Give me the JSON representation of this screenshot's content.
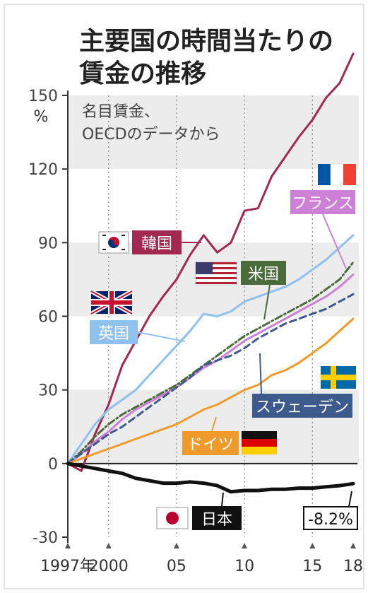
{
  "chart_data": {
    "type": "line",
    "title_line1": "主要国の時間当たりの",
    "title_line2": "賃金の推移",
    "subtitle_line1": "名目賃金、",
    "subtitle_line2": "OECDのデータから",
    "ylabel": "%",
    "ylim": [
      -30,
      170
    ],
    "xlim": [
      1997,
      2018
    ],
    "yticks": [
      150,
      120,
      90,
      60,
      30,
      0,
      -30
    ],
    "ytick_labels": [
      "150",
      "120",
      "90",
      "60",
      "30",
      "0",
      "-30"
    ],
    "xticks": [
      1997,
      2000,
      2005,
      2010,
      2015,
      2018
    ],
    "xtick_labels": [
      "1997年",
      "2000",
      "05",
      "10",
      "15",
      "18"
    ],
    "grid": "vertical dotted lines at 2000, 2005, 2010, 2015; alternating horizontal bands",
    "x": [
      1997,
      1998,
      1999,
      2000,
      2001,
      2002,
      2003,
      2004,
      2005,
      2006,
      2007,
      2008,
      2009,
      2010,
      2011,
      2012,
      2013,
      2014,
      2015,
      2016,
      2017,
      2018
    ],
    "series": [
      {
        "name": "韓国",
        "color": "#a3284f",
        "dash": "solid",
        "width": 3,
        "values": [
          0,
          -3,
          12,
          24,
          40,
          50,
          60,
          68,
          75,
          85,
          93,
          86,
          90,
          103,
          104,
          117,
          125,
          133,
          140,
          149,
          155,
          167
        ]
      },
      {
        "name": "英国",
        "color": "#8fc1ef",
        "dash": "solid",
        "width": 3,
        "values": [
          0,
          8,
          16,
          22,
          26,
          30,
          36,
          42,
          48,
          54,
          61,
          60,
          62,
          66,
          68,
          70,
          72,
          75,
          79,
          83,
          88,
          93
        ]
      },
      {
        "name": "米国",
        "color": "#4a6b3a",
        "dash": "dashdot",
        "width": 3,
        "values": [
          0,
          5,
          11,
          16,
          20,
          23,
          26,
          29,
          32,
          36,
          40,
          44,
          48,
          52,
          55,
          58,
          61,
          64,
          67,
          71,
          75,
          82
        ]
      },
      {
        "name": "フランス",
        "color": "#cc80d6",
        "dash": "solid",
        "width": 3,
        "values": [
          0,
          4,
          9,
          13,
          18,
          22,
          25,
          28,
          31,
          35,
          39,
          42,
          46,
          50,
          53,
          56,
          59,
          62,
          65,
          68,
          72,
          77
        ]
      },
      {
        "name": "スウェーデン",
        "color": "#3d5a8c",
        "dash": "dashed",
        "width": 3,
        "values": [
          0,
          4,
          8,
          12,
          15,
          19,
          23,
          27,
          31,
          35,
          40,
          42,
          44,
          47,
          51,
          54,
          57,
          59,
          61,
          63,
          66,
          69
        ]
      },
      {
        "name": "ドイツ",
        "color": "#ef9b2c",
        "dash": "solid",
        "width": 3,
        "values": [
          0,
          2,
          4,
          6,
          8,
          10,
          12,
          14,
          16,
          19,
          22,
          24,
          27,
          30,
          32,
          36,
          38,
          41,
          45,
          49,
          54,
          59
        ]
      },
      {
        "name": "日本",
        "color": "#111111",
        "dash": "solid",
        "width": 5,
        "values": [
          0,
          -1,
          -2,
          -3,
          -4,
          -6,
          -7,
          -8,
          -8,
          -7.5,
          -8,
          -9,
          -11.5,
          -11,
          -11,
          -10.5,
          -10.5,
          -10,
          -10,
          -9.5,
          -9,
          -8.2
        ]
      }
    ],
    "annotations": {
      "korea": "韓国",
      "uk": "英国",
      "usa": "米国",
      "france": "フランス",
      "sweden": "スウェーデン",
      "germany": "ドイツ",
      "japan": "日本",
      "japan_value": "-8.2%"
    },
    "colors": {
      "band": "#ececec",
      "korea_label_bg": "#a3284f",
      "uk_label_bg": "#8fc1ef",
      "usa_label_bg": "#4a6b3a",
      "france_label_bg": "#cc80d6",
      "sweden_label_bg": "#3d5a8c",
      "germany_label_bg": "#ef9b2c",
      "japan_label_bg": "#111111"
    }
  }
}
